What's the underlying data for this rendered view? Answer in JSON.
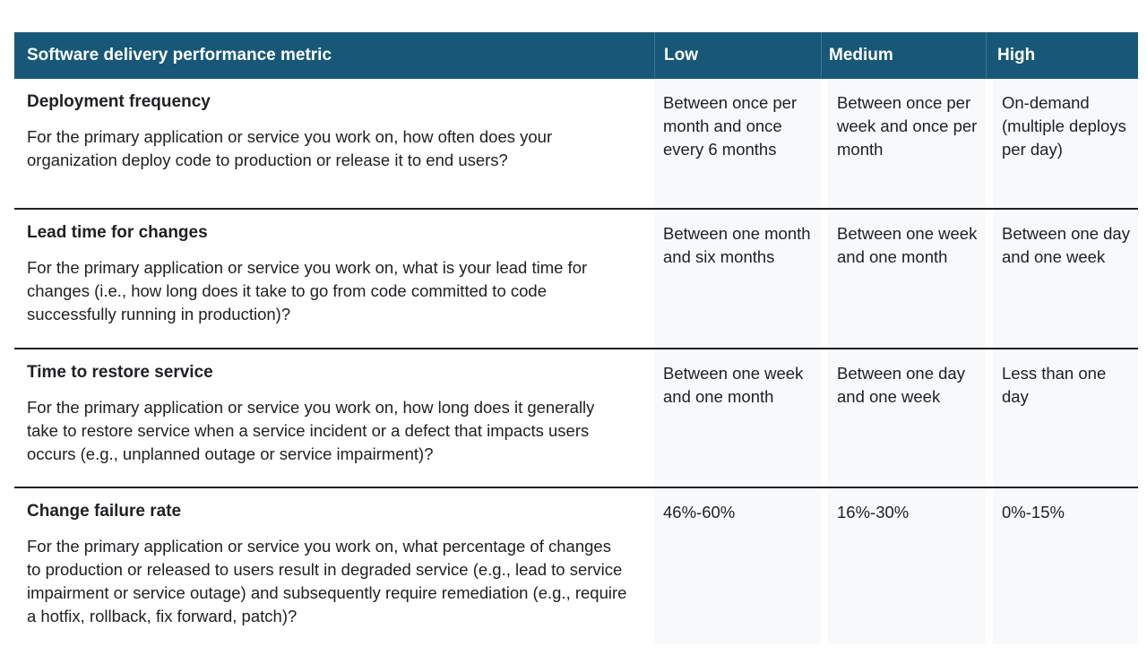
{
  "colors": {
    "header_bg": "#175879",
    "header_divider": "#3d7693",
    "header_text": "#ffffff",
    "value_cell_bg": "#f8f9fa",
    "row_separator": "#202124",
    "body_text": "#202124",
    "page_bg": "#ffffff"
  },
  "table": {
    "header": {
      "metric": "Software delivery performance metric",
      "low": "Low",
      "medium": "Medium",
      "high": "High"
    },
    "rows": [
      {
        "title": "Deployment frequency",
        "description": "For the primary application or service you work on, how often does your organization deploy code to production or release it to end users?",
        "low": "Between once per month and once every 6 months",
        "medium": "Between once per week and once per month",
        "high": "On-demand (multiple deploys per day)"
      },
      {
        "title": "Lead time for changes",
        "description": "For the primary application or service you work on, what is your lead time for changes (i.e., how long does it take to go from code committed to code successfully running in production)?",
        "low": "Between one month and six months",
        "medium": "Between one week and one month",
        "high": "Between one day and one week"
      },
      {
        "title": "Time to restore service",
        "description": "For the primary application or service you work on, how long does it generally take to restore service when a service incident or a defect that impacts users occurs (e.g., unplanned outage or service impairment)?",
        "low": "Between one week and one month",
        "medium": "Between one day and one week",
        "high": "Less than one day"
      },
      {
        "title": "Change failure rate",
        "description": "For the primary application or service you work on, what percentage of changes to production or released to users result in degraded service (e.g., lead to service impairment or service outage) and subsequently require remediation (e.g., require a hotfix, rollback, fix forward, patch)?",
        "low": "46%-60%",
        "medium": "16%-30%",
        "high": "0%-15%"
      }
    ]
  }
}
